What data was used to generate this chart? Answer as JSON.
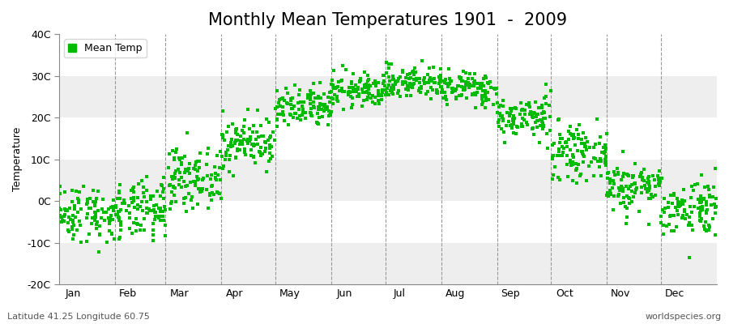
{
  "title": "Monthly Mean Temperatures 1901  -  2009",
  "ylabel": "Temperature",
  "bottom_left_text": "Latitude 41.25 Longitude 60.75",
  "bottom_right_text": "worldspecies.org",
  "legend_label": "Mean Temp",
  "ylim": [
    -20,
    40
  ],
  "ytick_labels": [
    "-20C",
    "-10C",
    "0C",
    "10C",
    "20C",
    "30C",
    "40C"
  ],
  "ytick_values": [
    -20,
    -10,
    0,
    10,
    20,
    30,
    40
  ],
  "months": [
    "Jan",
    "Feb",
    "Mar",
    "Apr",
    "May",
    "Jun",
    "Jul",
    "Aug",
    "Sep",
    "Oct",
    "Nov",
    "Dec"
  ],
  "month_days": [
    31,
    28,
    31,
    30,
    31,
    30,
    31,
    31,
    30,
    31,
    30,
    31
  ],
  "monthly_mean_temps": [
    -3.0,
    -2.5,
    5.5,
    14.0,
    22.0,
    26.5,
    28.5,
    27.0,
    20.0,
    11.5,
    3.5,
    -1.5
  ],
  "monthly_std_temps": [
    3.5,
    3.5,
    3.5,
    3.0,
    2.5,
    2.0,
    2.0,
    2.0,
    2.5,
    3.0,
    3.0,
    3.5
  ],
  "n_years": 109,
  "marker_color": "#00bb00",
  "marker_size": 3,
  "bg_color": "#ffffff",
  "band_color": "#eeeeee",
  "title_fontsize": 15,
  "axis_label_fontsize": 9,
  "tick_fontsize": 9,
  "annotation_fontsize": 8
}
